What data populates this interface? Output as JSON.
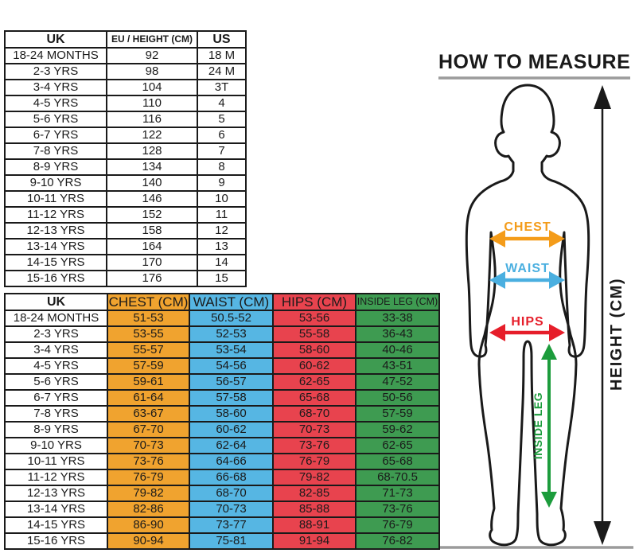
{
  "colors": {
    "ink": "#1a1a1a",
    "chest": "#F0A32F",
    "waist": "#56B6E3",
    "hips": "#E8434E",
    "inside_leg": "#3E9B51",
    "arrow_chest": "#F49C1A",
    "arrow_waist": "#4AAFE0",
    "arrow_hips": "#E61E2A",
    "arrow_inside_leg": "#1C9C3C",
    "line_gray": "#9b9b9b"
  },
  "age_table": {
    "columns": [
      {
        "label": "UK"
      },
      {
        "label": "EU / HEIGHT (CM)",
        "small": true
      },
      {
        "label": "US"
      }
    ],
    "rows": [
      [
        "18-24 MONTHS",
        "92",
        "18 M"
      ],
      [
        "2-3 YRS",
        "98",
        "24 M"
      ],
      [
        "3-4 YRS",
        "104",
        "3T"
      ],
      [
        "4-5 YRS",
        "110",
        "4"
      ],
      [
        "5-6 YRS",
        "116",
        "5"
      ],
      [
        "6-7 YRS",
        "122",
        "6"
      ],
      [
        "7-8 YRS",
        "128",
        "7"
      ],
      [
        "8-9 YRS",
        "134",
        "8"
      ],
      [
        "9-10 YRS",
        "140",
        "9"
      ],
      [
        "10-11 YRS",
        "146",
        "10"
      ],
      [
        "11-12 YRS",
        "152",
        "11"
      ],
      [
        "12-13 YRS",
        "158",
        "12"
      ],
      [
        "13-14 YRS",
        "164",
        "13"
      ],
      [
        "14-15 YRS",
        "170",
        "14"
      ],
      [
        "15-16 YRS",
        "176",
        "15"
      ]
    ]
  },
  "measure_table": {
    "columns": [
      {
        "label": "UK"
      },
      {
        "label": "CHEST (CM)",
        "color": "chest"
      },
      {
        "label": "WAIST (CM)",
        "color": "waist"
      },
      {
        "label": "HIPS (CM)",
        "color": "hips"
      },
      {
        "label": "INSIDE LEG (CM)",
        "color": "inside_leg",
        "small": true
      }
    ],
    "rows": [
      [
        "18-24 MONTHS",
        "51-53",
        "50.5-52",
        "53-56",
        "33-38"
      ],
      [
        "2-3 YRS",
        "53-55",
        "52-53",
        "55-58",
        "36-43"
      ],
      [
        "3-4 YRS",
        "55-57",
        "53-54",
        "58-60",
        "40-46"
      ],
      [
        "4-5 YRS",
        "57-59",
        "54-56",
        "60-62",
        "43-51"
      ],
      [
        "5-6 YRS",
        "59-61",
        "56-57",
        "62-65",
        "47-52"
      ],
      [
        "6-7 YRS",
        "61-64",
        "57-58",
        "65-68",
        "50-56"
      ],
      [
        "7-8 YRS",
        "63-67",
        "58-60",
        "68-70",
        "57-59"
      ],
      [
        "8-9 YRS",
        "67-70",
        "60-62",
        "70-73",
        "59-62"
      ],
      [
        "9-10 YRS",
        "70-73",
        "62-64",
        "73-76",
        "62-65"
      ],
      [
        "10-11 YRS",
        "73-76",
        "64-66",
        "76-79",
        "65-68"
      ],
      [
        "11-12 YRS",
        "76-79",
        "66-68",
        "79-82",
        "68-70.5"
      ],
      [
        "12-13 YRS",
        "79-82",
        "68-70",
        "82-85",
        "71-73"
      ],
      [
        "13-14 YRS",
        "82-86",
        "70-73",
        "85-88",
        "73-76"
      ],
      [
        "14-15 YRS",
        "86-90",
        "73-77",
        "88-91",
        "76-79"
      ],
      [
        "15-16 YRS",
        "90-94",
        "75-81",
        "91-94",
        "76-82"
      ]
    ]
  },
  "diagram": {
    "title": "HOW TO MEASURE",
    "labels": {
      "chest": "CHEST",
      "waist": "WAIST",
      "hips": "HIPS",
      "inside_leg": "INSIDE LEG",
      "height": "HEIGHT (CM)"
    }
  }
}
